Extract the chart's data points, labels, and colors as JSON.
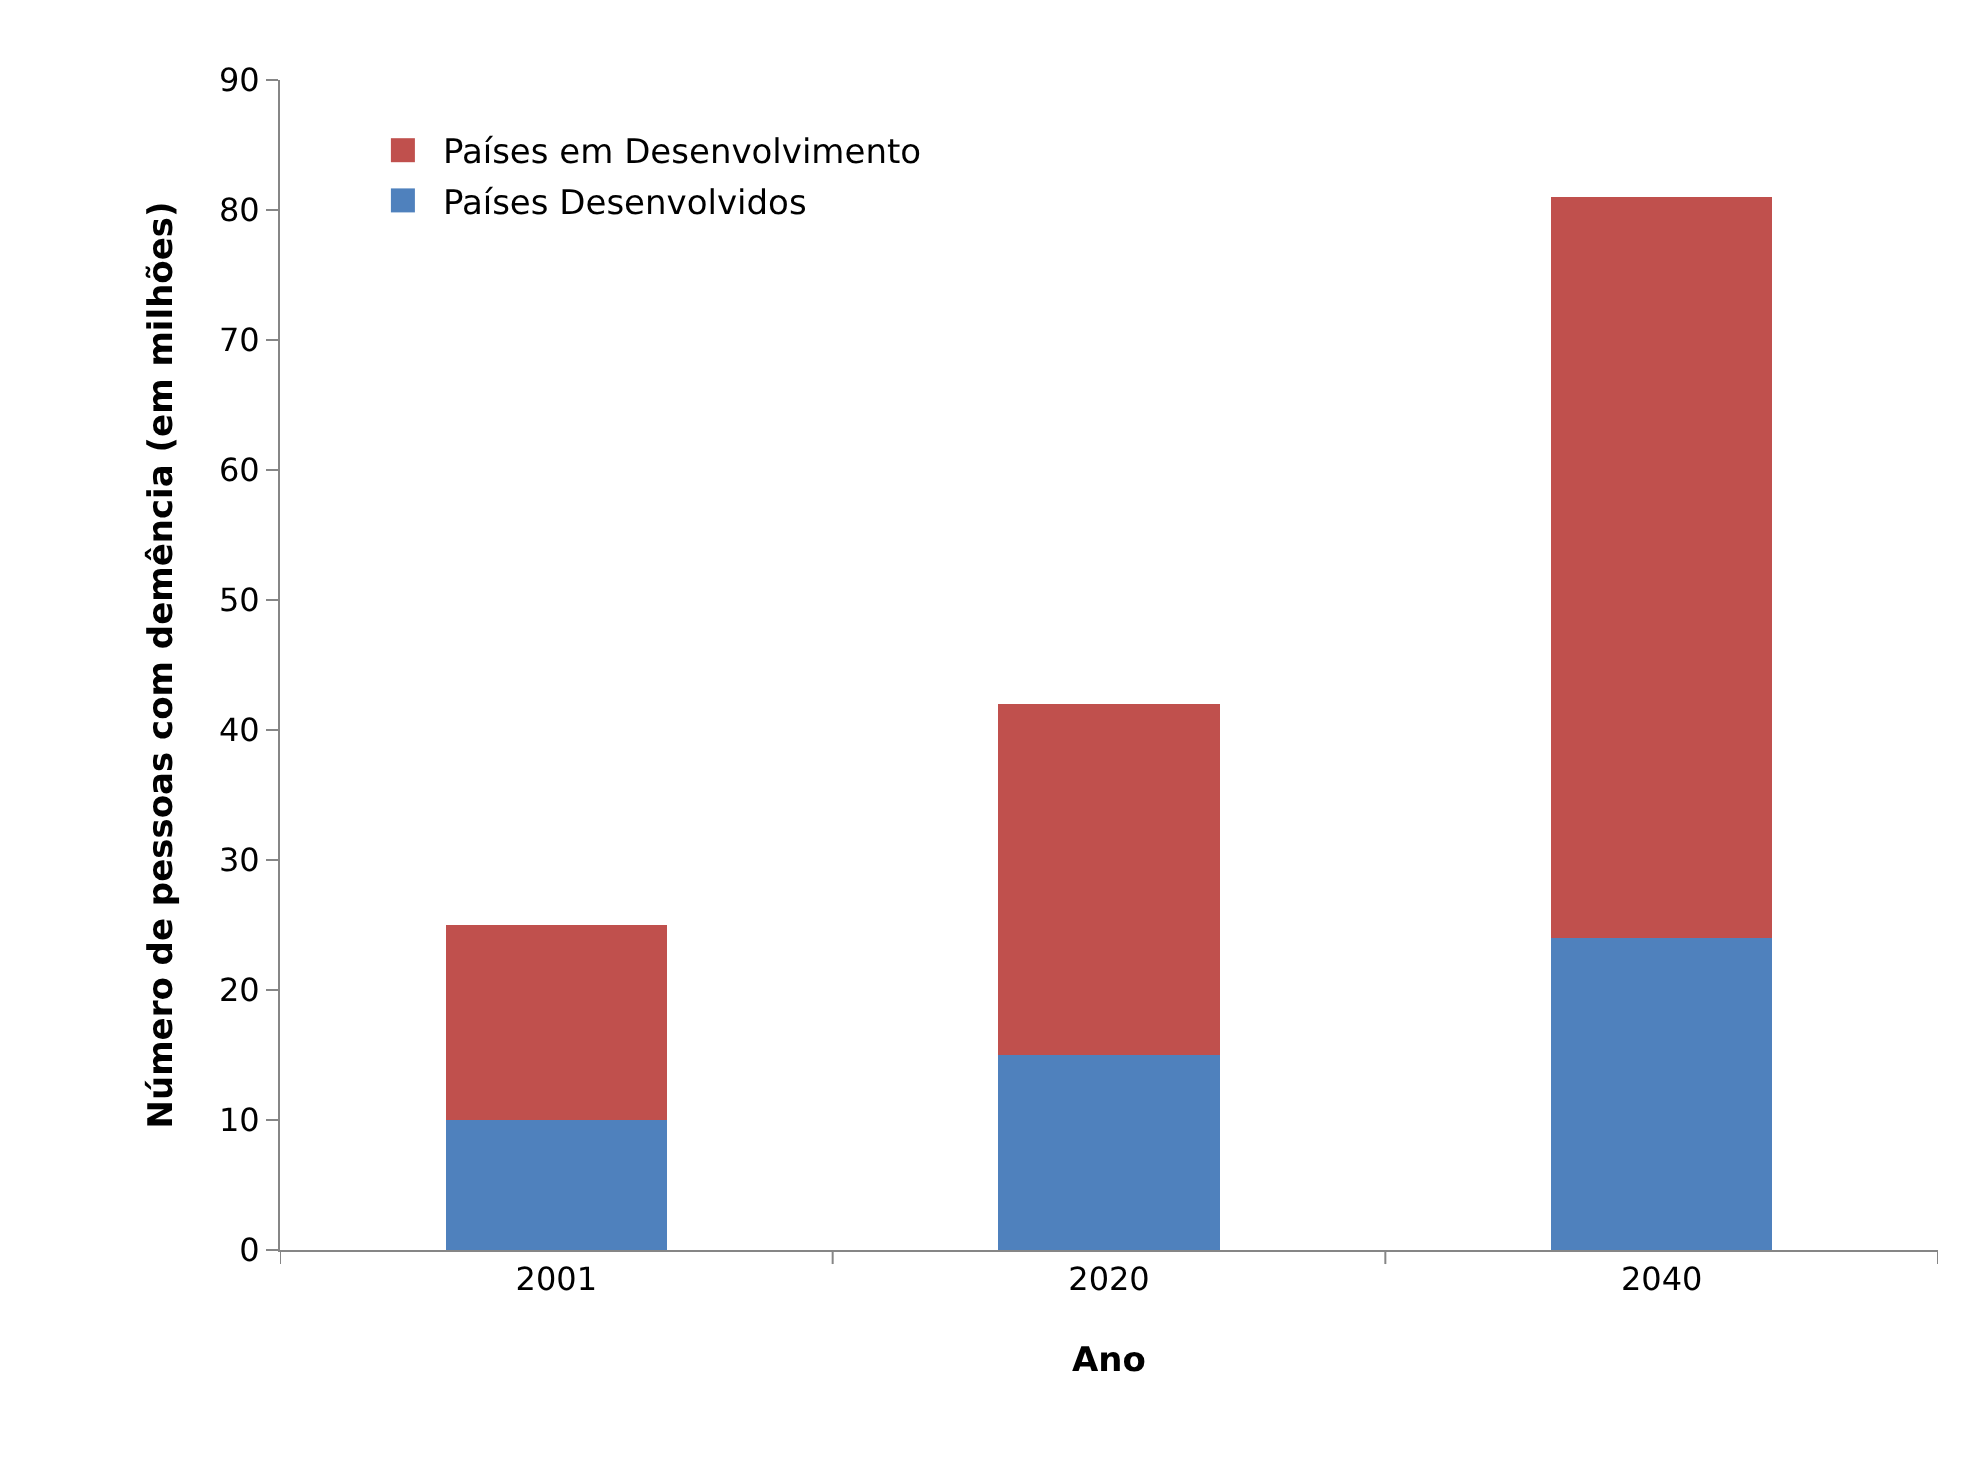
{
  "chart_data": {
    "type": "bar",
    "stacked": true,
    "xlabel": "Ano",
    "ylabel": "Número de pessoas com demência (em milhões)",
    "categories": [
      "2001",
      "2020",
      "2040"
    ],
    "series": [
      {
        "name": "Países Desenvolvidos",
        "color": "#4f81bd",
        "values": [
          10,
          15,
          24
        ]
      },
      {
        "name": "Países em Desenvolvimento",
        "color": "#c0504d",
        "values": [
          15,
          27,
          57
        ]
      }
    ],
    "ylim": [
      0,
      90
    ],
    "yticks": [
      0,
      10,
      20,
      30,
      40,
      50,
      60,
      70,
      80,
      90
    ],
    "grid": false,
    "legend": "top left"
  }
}
